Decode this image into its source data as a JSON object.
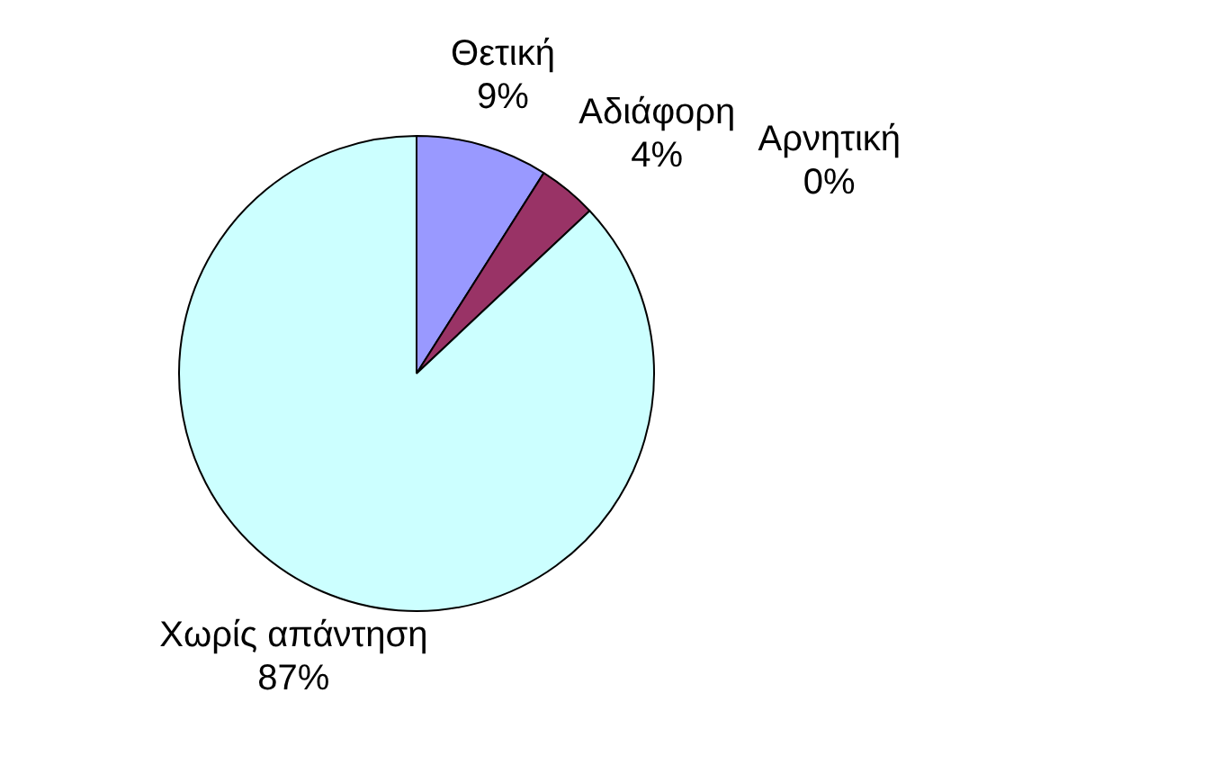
{
  "chart_data": {
    "type": "pie",
    "categories": [
      "Θετική",
      "Αδιάφορη",
      "Αρνητική",
      "Χωρίς απάντηση"
    ],
    "values": [
      9,
      4,
      0,
      87
    ],
    "colors": [
      "#9999ff",
      "#993366",
      "#999966",
      "#ccffff"
    ],
    "value_labels": [
      "9%",
      "4%",
      "0%",
      "87%"
    ],
    "legend": false
  }
}
